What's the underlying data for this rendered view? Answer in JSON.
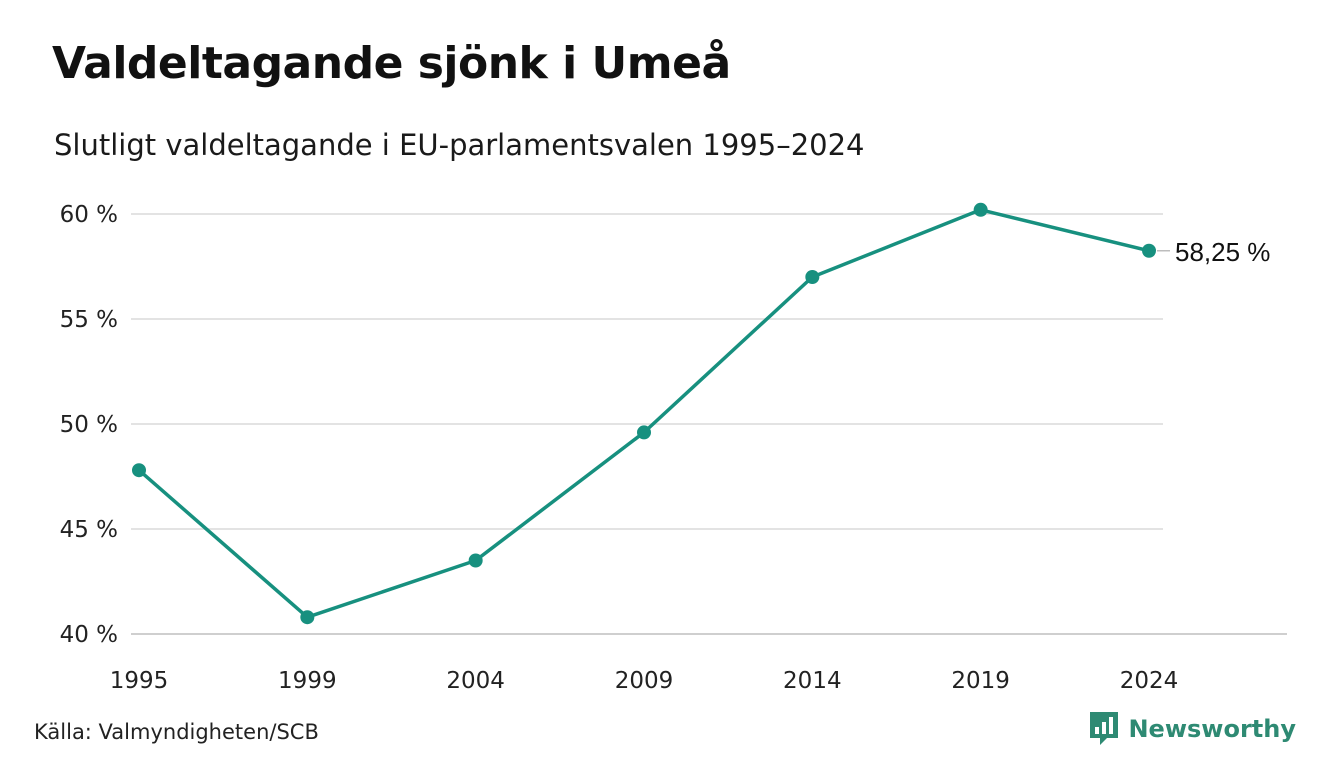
{
  "title": "Valdeltagande sjönk i Umeå",
  "subtitle": "Slutligt valdeltagande i EU-parlamentsvalen 1995–2024",
  "source": "Källa: Valmyndigheten/SCB",
  "brand": {
    "name": "Newsworthy",
    "icon": "newsworthy-logo-icon",
    "color": "#2e8a73"
  },
  "chart_data": {
    "type": "line",
    "x": [
      "1995",
      "1999",
      "2004",
      "2009",
      "2014",
      "2019",
      "2024"
    ],
    "series": [
      {
        "values": [
          47.8,
          40.8,
          43.5,
          49.6,
          57.0,
          60.2,
          58.25
        ],
        "color": "#17907f"
      }
    ],
    "ylim": [
      40,
      60
    ],
    "yticks": [
      {
        "value": 60,
        "label": "60 %"
      },
      {
        "value": 55,
        "label": "55 %"
      },
      {
        "value": 50,
        "label": "50 %"
      },
      {
        "value": 45,
        "label": "45 %"
      },
      {
        "value": 40,
        "label": "40 %"
      }
    ],
    "end_label": "58,25 %",
    "grid": true,
    "xlabel": "",
    "ylabel": ""
  }
}
